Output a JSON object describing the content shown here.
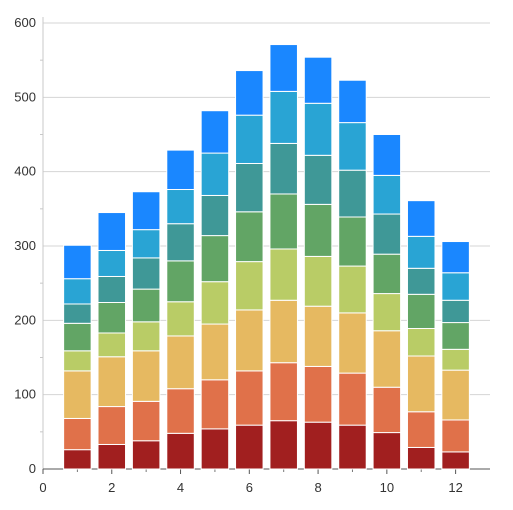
{
  "chart_data": {
    "type": "bar",
    "stacked": true,
    "title": "",
    "xlabel": "",
    "ylabel": "",
    "x": [
      1,
      2,
      3,
      4,
      5,
      6,
      7,
      8,
      9,
      10,
      11,
      12
    ],
    "xlim": [
      0,
      13
    ],
    "ylim": [
      0,
      600
    ],
    "x_ticks": [
      0,
      2,
      4,
      6,
      8,
      10,
      12
    ],
    "y_ticks": [
      0,
      100,
      200,
      300,
      400,
      500,
      600
    ],
    "grid": "horizontal",
    "legend": "none",
    "series": [
      {
        "color": "#a11f1f",
        "values": [
          26,
          33,
          38,
          48,
          54,
          59,
          65,
          63,
          59,
          49,
          29,
          23
        ]
      },
      {
        "color": "#e0714a",
        "values": [
          42,
          51,
          53,
          60,
          66,
          73,
          78,
          75,
          70,
          61,
          48,
          43
        ]
      },
      {
        "color": "#e6b961",
        "values": [
          64,
          67,
          68,
          71,
          75,
          82,
          84,
          81,
          81,
          76,
          75,
          67
        ]
      },
      {
        "color": "#b9cc66",
        "values": [
          27,
          32,
          39,
          46,
          57,
          65,
          69,
          67,
          63,
          50,
          37,
          28
        ]
      },
      {
        "color": "#62a565",
        "values": [
          37,
          41,
          44,
          55,
          62,
          67,
          74,
          70,
          66,
          53,
          46,
          36
        ]
      },
      {
        "color": "#3f9897",
        "values": [
          26,
          35,
          42,
          50,
          54,
          65,
          68,
          66,
          63,
          54,
          35,
          30
        ]
      },
      {
        "color": "#29a4d4",
        "values": [
          34,
          35,
          38,
          46,
          57,
          65,
          70,
          70,
          64,
          52,
          43,
          37
        ]
      },
      {
        "color": "#1a87ff",
        "values": [
          45,
          51,
          51,
          53,
          57,
          60,
          63,
          62,
          57,
          55,
          48,
          42
        ]
      }
    ]
  }
}
